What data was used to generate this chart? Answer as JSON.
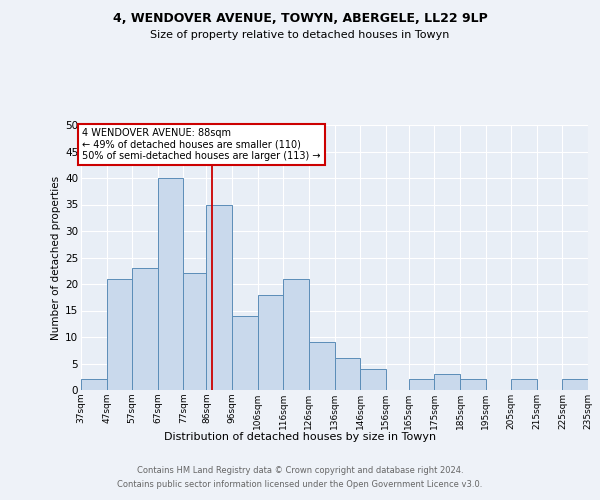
{
  "title1": "4, WENDOVER AVENUE, TOWYN, ABERGELE, LL22 9LP",
  "title2": "Size of property relative to detached houses in Towyn",
  "xlabel": "Distribution of detached houses by size in Towyn",
  "ylabel": "Number of detached properties",
  "values": [
    2,
    21,
    23,
    40,
    22,
    35,
    14,
    18,
    21,
    9,
    6,
    4,
    0,
    2,
    3,
    2,
    0,
    2,
    0,
    2
  ],
  "bin_edges": [
    37,
    47,
    57,
    67,
    77,
    86,
    96,
    106,
    116,
    126,
    136,
    146,
    156,
    165,
    175,
    185,
    195,
    205,
    215,
    225,
    235
  ],
  "bar_color": "#c9d9ec",
  "bar_edge_color": "#5b8db8",
  "vline_x": 88,
  "vline_color": "#cc0000",
  "annotation_title": "4 WENDOVER AVENUE: 88sqm",
  "annotation_line1": "← 49% of detached houses are smaller (110)",
  "annotation_line2": "50% of semi-detached houses are larger (113) →",
  "annotation_box_color": "#ffffff",
  "annotation_box_edge": "#cc0000",
  "ylim": [
    0,
    50
  ],
  "yticks": [
    0,
    5,
    10,
    15,
    20,
    25,
    30,
    35,
    40,
    45,
    50
  ],
  "footer1": "Contains HM Land Registry data © Crown copyright and database right 2024.",
  "footer2": "Contains public sector information licensed under the Open Government Licence v3.0.",
  "bg_color": "#eef2f8",
  "plot_bg_color": "#e8eef6"
}
